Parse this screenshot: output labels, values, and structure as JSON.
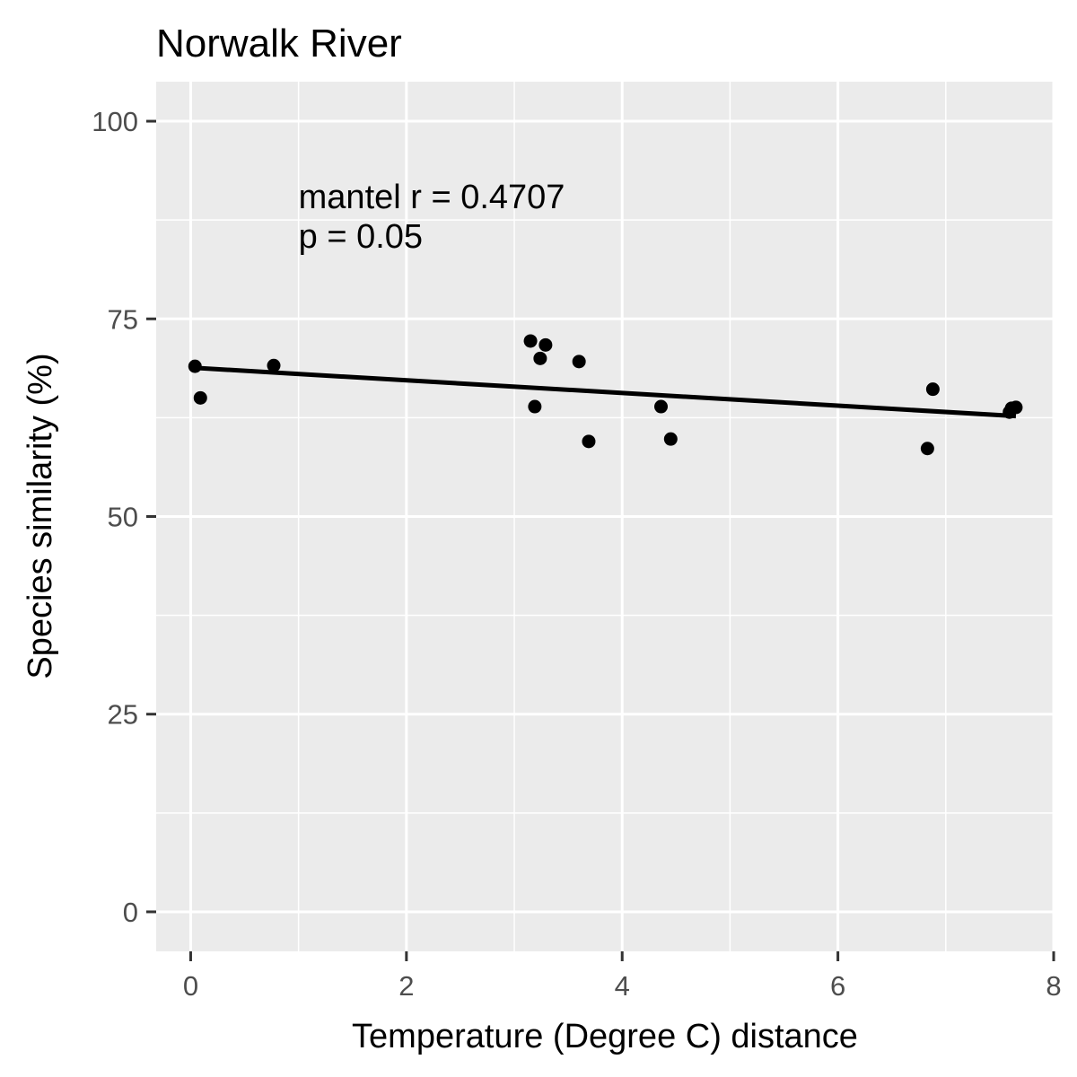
{
  "chart_data": {
    "type": "scatter",
    "title": "Norwalk River",
    "xlabel": "Temperature (Degree C) distance",
    "ylabel": "Species similarity (%)",
    "xlim": [
      -0.32,
      8.0
    ],
    "ylim": [
      -5,
      105
    ],
    "x_ticks": [
      0,
      2,
      4,
      6,
      8
    ],
    "y_ticks": [
      0,
      25,
      50,
      75,
      100
    ],
    "x_tick_labels": [
      "0",
      "2",
      "4",
      "6",
      "8"
    ],
    "y_tick_labels": [
      "0",
      "25",
      "50",
      "75",
      "100"
    ],
    "grid": true,
    "background": "#ebebeb",
    "grid_color": "#ffffff",
    "point_color": "#000000",
    "annotation": {
      "lines": [
        "mantel r = 0.4707",
        "p = 0.05"
      ],
      "x": 1.0,
      "y": 89
    },
    "points": [
      {
        "x": 0.04,
        "y": 69.0
      },
      {
        "x": 0.09,
        "y": 65.0
      },
      {
        "x": 0.77,
        "y": 69.1
      },
      {
        "x": 3.15,
        "y": 72.2
      },
      {
        "x": 3.19,
        "y": 63.9
      },
      {
        "x": 3.24,
        "y": 70.0
      },
      {
        "x": 3.29,
        "y": 71.7
      },
      {
        "x": 3.6,
        "y": 69.6
      },
      {
        "x": 3.69,
        "y": 59.5
      },
      {
        "x": 4.36,
        "y": 63.9
      },
      {
        "x": 4.45,
        "y": 59.8
      },
      {
        "x": 6.83,
        "y": 58.6
      },
      {
        "x": 6.88,
        "y": 66.1
      },
      {
        "x": 7.59,
        "y": 63.2
      },
      {
        "x": 7.61,
        "y": 63.7
      },
      {
        "x": 7.65,
        "y": 63.8
      }
    ],
    "trend_line": {
      "type": "linear",
      "from": {
        "x": 0.04,
        "y": 68.8
      },
      "to": {
        "x": 7.65,
        "y": 62.7
      }
    }
  }
}
